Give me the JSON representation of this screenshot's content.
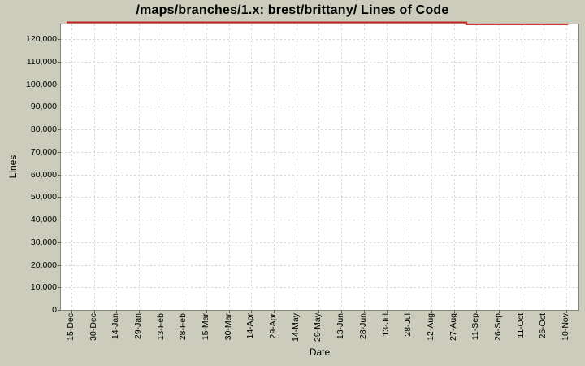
{
  "chart_data": {
    "type": "line",
    "title": "/maps/branches/1.x: brest/brittany/ Lines of Code",
    "xlabel": "Date",
    "ylabel": "Lines",
    "x_tick_labels": [
      "15-Dec",
      "30-Dec",
      "14-Jan",
      "29-Jan",
      "13-Feb",
      "28-Feb",
      "15-Mar",
      "30-Mar",
      "14-Apr",
      "29-Apr",
      "14-May",
      "29-May",
      "13-Jun",
      "28-Jun",
      "13-Jul",
      "28-Jul",
      "12-Aug",
      "27-Aug",
      "11-Sep",
      "26-Sep",
      "11-Oct",
      "26-Oct",
      "10-Nov"
    ],
    "y_ticks": [
      {
        "value": 0,
        "label": "0"
      },
      {
        "value": 10000,
        "label": "10,000"
      },
      {
        "value": 20000,
        "label": "20,000"
      },
      {
        "value": 30000,
        "label": "30,000"
      },
      {
        "value": 40000,
        "label": "40,000"
      },
      {
        "value": 50000,
        "label": "50,000"
      },
      {
        "value": 60000,
        "label": "60,000"
      },
      {
        "value": 70000,
        "label": "70,000"
      },
      {
        "value": 80000,
        "label": "80,000"
      },
      {
        "value": 90000,
        "label": "90,000"
      },
      {
        "value": 100000,
        "label": "100,000"
      },
      {
        "value": 110000,
        "label": "110,000"
      },
      {
        "value": 120000,
        "label": "120,000"
      }
    ],
    "ylim": [
      0,
      126500
    ],
    "grid": true,
    "legend": false,
    "series": [
      {
        "name": "Lines of Code",
        "color": "#c0241e",
        "points": [
          {
            "date": "12-Dec",
            "t_index": -0.18,
            "value": 127400
          },
          {
            "date": "04-Sep",
            "t_index": 17.56,
            "value": 127400
          },
          {
            "date": "04-Sep",
            "t_index": 17.56,
            "value": 126550
          },
          {
            "date": "10-Nov",
            "t_index": 22.05,
            "value": 126550
          }
        ]
      }
    ],
    "colors": {
      "background": "#cbccbb",
      "plot_background": "#ffffff",
      "plot_border": "#85857a",
      "gridline": "#d4d4d4",
      "tick": "#555555",
      "text": "#000000"
    }
  }
}
